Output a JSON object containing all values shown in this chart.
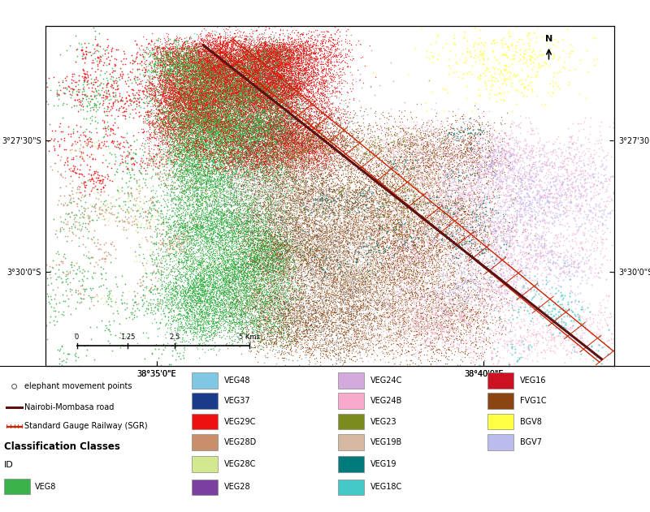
{
  "map_bg": "#ffffff",
  "fig_bg": "#ffffff",
  "map_xlim": [
    38.555,
    38.7
  ],
  "map_ylim": [
    -3.53,
    -3.422
  ],
  "x_ticks": [
    38.5833,
    38.6667
  ],
  "x_labels": [
    "38°35'0\"E",
    "38°40'0\"E"
  ],
  "y_ticks": [
    -3.4583,
    -3.5
  ],
  "y_labels": [
    "3°27'30\"S",
    "3°30'0\"S"
  ],
  "road_color": "#5C1010",
  "sgr_color": "#CC2200",
  "elephant_color": "#606060",
  "veg_colors": {
    "VEG8": "#3CB34A",
    "VEG48": "#7EC8E3",
    "VEG37": "#1A3A8C",
    "VEG29C": "#EE1111",
    "VEG28D": "#C8906A",
    "VEG28C": "#D4E890",
    "VEG28": "#7B3FA0",
    "VEG24C": "#D4AADD",
    "VEG24B": "#F9AACC",
    "VEG23": "#7B8B1E",
    "VEG19B": "#D4B8A0",
    "VEG19": "#007B7B",
    "VEG18C": "#44C8C8",
    "VEG16": "#CC1122",
    "FVG1C": "#8B4513",
    "BGV8": "#FFFF44",
    "BGV7": "#BBBBEE"
  },
  "legend_items_col1": [
    {
      "label": "VEG48",
      "color": "#7EC8E3"
    },
    {
      "label": "VEG37",
      "color": "#1A3A8C"
    },
    {
      "label": "VEG29C",
      "color": "#EE1111"
    },
    {
      "label": "VEG28D",
      "color": "#C8906A"
    },
    {
      "label": "VEG28C",
      "color": "#D4E890"
    },
    {
      "label": "VEG28",
      "color": "#7B3FA0"
    }
  ],
  "legend_items_col2": [
    {
      "label": "VEG24C",
      "color": "#D4AADD"
    },
    {
      "label": "VEG24B",
      "color": "#F9AACC"
    },
    {
      "label": "VEG23",
      "color": "#7B8B1E"
    },
    {
      "label": "VEG19B",
      "color": "#D4B8A0"
    },
    {
      "label": "VEG19",
      "color": "#007B7B"
    },
    {
      "label": "VEG18C",
      "color": "#44C8C8"
    }
  ],
  "legend_items_col3": [
    {
      "label": "VEG16",
      "color": "#CC1122"
    },
    {
      "label": "FVG1C",
      "color": "#8B4513"
    },
    {
      "label": "BGV8",
      "color": "#FFFF44"
    },
    {
      "label": "BGV7",
      "color": "#BBBBEE"
    }
  ]
}
